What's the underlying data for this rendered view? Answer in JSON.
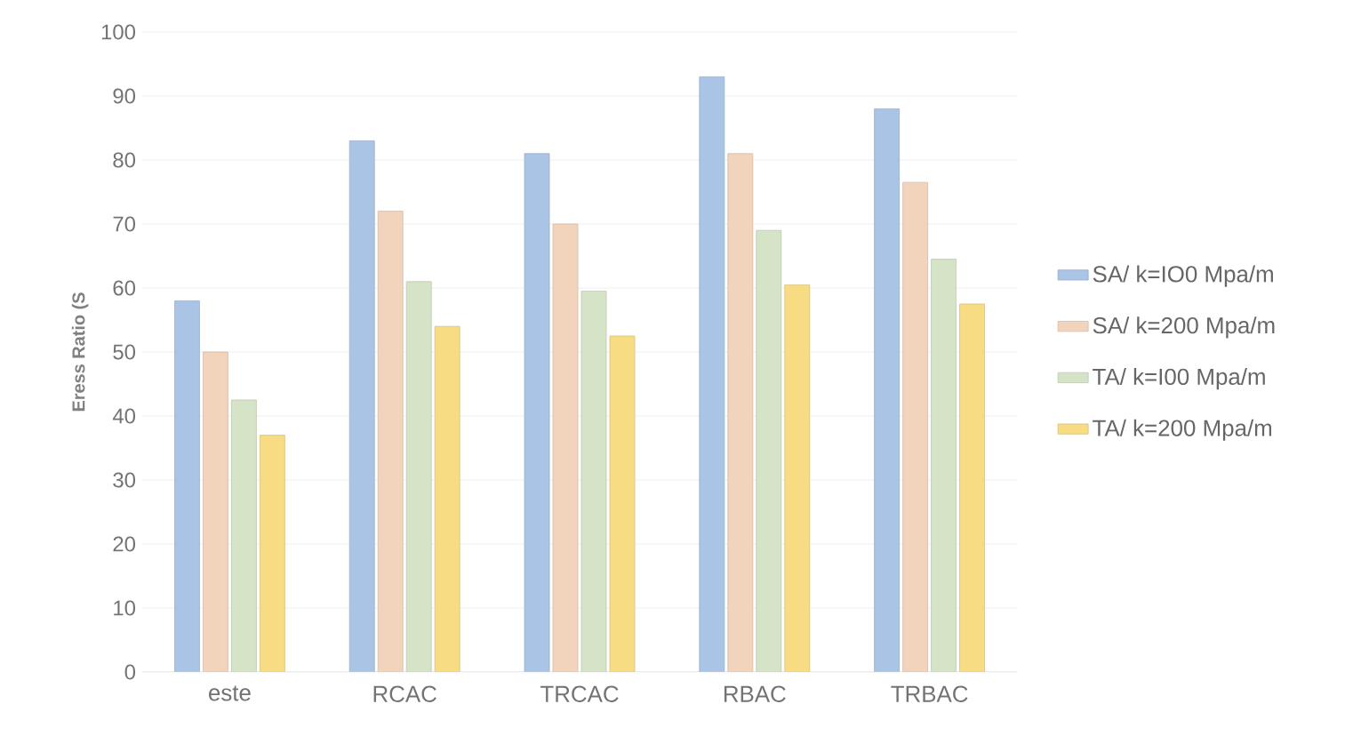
{
  "chart_data": {
    "type": "bar",
    "ylabel": "Eress Ratio (S",
    "categories": [
      "este",
      "RCAC",
      "TRCAC",
      "RBAC",
      "TRBAC"
    ],
    "series": [
      {
        "name": "SA/ k=IO0 Mpa/m",
        "color": "#a9c4e4",
        "values": [
          58,
          83,
          81,
          93,
          88
        ]
      },
      {
        "name": "SA/ k=200 Mpa/m",
        "color": "#f2d3bc",
        "values": [
          50,
          72,
          70,
          81,
          76.5
        ]
      },
      {
        "name": "TA/ k=I00 Mpa/m",
        "color": "#d5e3c6",
        "values": [
          42.5,
          61,
          59.5,
          69,
          64.5
        ]
      },
      {
        "name": "TA/ k=200 Mpa/m",
        "color": "#f7dc84",
        "values": [
          37,
          54,
          52.5,
          60.5,
          57.5
        ]
      }
    ],
    "ylim": [
      0,
      100
    ],
    "yticks": [
      0,
      10,
      20,
      30,
      40,
      50,
      60,
      70,
      80,
      90,
      100
    ],
    "grid": "y",
    "legend": "right"
  }
}
